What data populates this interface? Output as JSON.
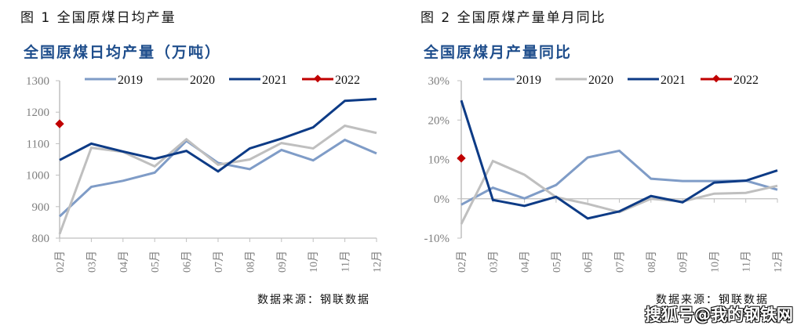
{
  "figures": [
    {
      "caption": "图 1  全国原煤日均产量",
      "source": "数据来源：钢联数据"
    },
    {
      "caption": "图 2  全国原煤产量单月同比",
      "source": "数据来源：钢联数据"
    }
  ],
  "watermark": "搜狐号@我的钢铁网",
  "colors": {
    "2019": "#7f9cc7",
    "2020": "#bfbfbf",
    "2021": "#0d3b86",
    "2022": "#c00000",
    "title": "#1f4e8c",
    "axis": "#bfbfbf",
    "tick_text": "#7f7f7f"
  },
  "chart_data": [
    {
      "type": "line",
      "title": "全国原煤日均产量（万吨）",
      "xlabel": "",
      "ylabel": "",
      "categories": [
        "02月",
        "03月",
        "04月",
        "05月",
        "06月",
        "07月",
        "08月",
        "09月",
        "10月",
        "11月",
        "12月"
      ],
      "ylim": [
        800,
        1300
      ],
      "yticks": [
        800,
        900,
        1000,
        1100,
        1200,
        1300
      ],
      "ytick_labels": [
        "800",
        "900",
        "1000",
        "1100",
        "1200",
        "1300"
      ],
      "grid": false,
      "legend_position": "top",
      "series": [
        {
          "name": "2019",
          "values": [
            869,
            963,
            982,
            1008,
            1109,
            1039,
            1019,
            1080,
            1047,
            1112,
            1069
          ]
        },
        {
          "name": "2020",
          "values": [
            813,
            1087,
            1074,
            1028,
            1114,
            1033,
            1050,
            1102,
            1085,
            1157,
            1134
          ]
        },
        {
          "name": "2021",
          "values": [
            1048,
            1100,
            1075,
            1052,
            1077,
            1012,
            1085,
            1116,
            1152,
            1236,
            1242
          ]
        },
        {
          "name": "2022",
          "values": [
            1163,
            null,
            null,
            null,
            null,
            null,
            null,
            null,
            null,
            null,
            null
          ]
        }
      ]
    },
    {
      "type": "line",
      "title": "全国原煤月产量同比",
      "xlabel": "",
      "ylabel": "",
      "categories": [
        "02月",
        "03月",
        "04月",
        "05月",
        "06月",
        "07月",
        "08月",
        "09月",
        "10月",
        "11月",
        "12月"
      ],
      "ylim": [
        -10,
        30
      ],
      "yticks": [
        -10,
        0,
        10,
        20,
        30
      ],
      "ytick_labels": [
        "-10%",
        "0%",
        "10%",
        "20%",
        "30%"
      ],
      "grid": false,
      "legend_position": "top",
      "series": [
        {
          "name": "2019",
          "values": [
            -1.5,
            2.8,
            0.1,
            3.5,
            10.5,
            12.2,
            5.1,
            4.5,
            4.5,
            4.6,
            2.3
          ]
        },
        {
          "name": "2020",
          "values": [
            -6.4,
            9.6,
            6.1,
            0.4,
            -1.3,
            -3.4,
            0.0,
            -0.7,
            1.3,
            1.5,
            3.3
          ]
        },
        {
          "name": "2021",
          "values": [
            25.0,
            -0.3,
            -1.8,
            0.5,
            -5.0,
            -3.2,
            0.7,
            -0.9,
            4.1,
            4.6,
            7.2
          ]
        },
        {
          "name": "2022",
          "values": [
            10.3,
            null,
            null,
            null,
            null,
            null,
            null,
            null,
            null,
            null,
            null
          ]
        }
      ]
    }
  ]
}
